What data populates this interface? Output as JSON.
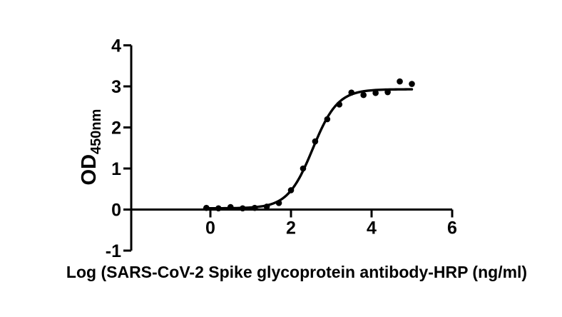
{
  "figure": {
    "background": "#ffffff"
  },
  "chart_data": {
    "type": "scatter",
    "title": "",
    "xlabel": "Log (SARS-CoV-2 Spike glycoprotein antibody-HRP (ng/ml)",
    "ylabel": "OD",
    "ylabel_subscript": "450nm",
    "axis_color": "#000000",
    "marker_color": "#000000",
    "curve_color": "#000000",
    "background_color": "#ffffff",
    "grid": false,
    "legend_position": "none",
    "xlim": [
      -1.95,
      6
    ],
    "ylim": [
      -1,
      4
    ],
    "x_tick_labels": [
      "0",
      "2",
      "4",
      "6"
    ],
    "x_tick_values": [
      0,
      2,
      4,
      6
    ],
    "y_tick_labels": [
      "4",
      "3",
      "2",
      "1",
      "0",
      "-1"
    ],
    "y_tick_values": [
      4,
      3,
      2,
      1,
      0,
      -1
    ],
    "x": [
      -0.1,
      0.2,
      0.5,
      0.8,
      1.1,
      1.4,
      1.7,
      2.0,
      2.3,
      2.6,
      2.9,
      3.2,
      3.5,
      3.8,
      4.1,
      4.4,
      4.7,
      5.0
    ],
    "y": [
      0.04,
      0.03,
      0.06,
      0.03,
      0.04,
      0.07,
      0.16,
      0.47,
      1.0,
      1.66,
      2.2,
      2.56,
      2.85,
      2.79,
      2.84,
      2.86,
      3.12,
      3.06
    ],
    "fit_curve": {
      "model": "4PL-sigmoid",
      "bottom": 0.03,
      "top": 2.93,
      "logEC50": 2.54,
      "hill_slope": 1.4,
      "x_start": -0.15,
      "x_end": 5.0
    }
  }
}
